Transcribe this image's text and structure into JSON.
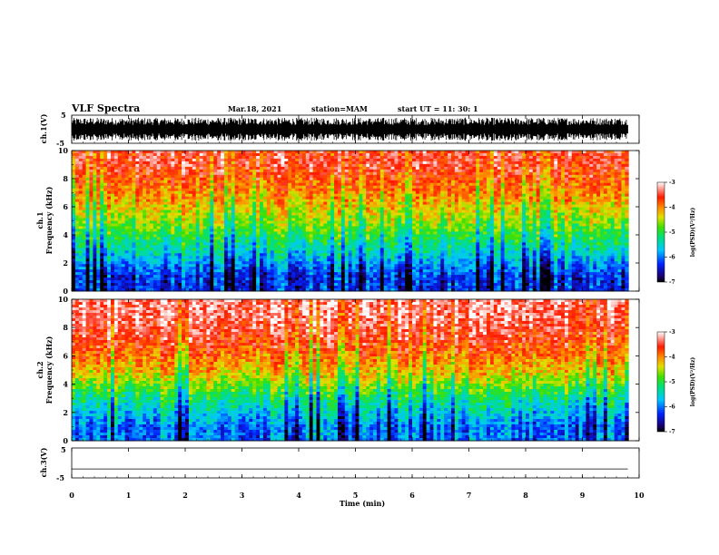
{
  "header": {
    "title": "VLF Spectra",
    "date": "Mar.18, 2021",
    "station": "station=MAM",
    "start_ut": "start  UT =   11: 30: 1"
  },
  "chart_data": [
    {
      "type": "line",
      "panel": "ch1-waveform",
      "ylabel": "ch.1(V)",
      "ylim": [
        -5,
        5
      ],
      "yticks": [
        "5",
        "-5"
      ],
      "description_of_trace": "dense impulsive (sferic) waveform spanning roughly -4 to +4 V over entire record"
    },
    {
      "type": "heatmap",
      "panel": "ch1-spectrogram",
      "ylabel": "ch.1\nFrequency (kHz)",
      "ylim": [
        0,
        10
      ],
      "yticks": [
        "0",
        "2",
        "4",
        "6",
        "8",
        "10"
      ],
      "colorbar": {
        "label": "log(PSD)(V²/Hz)",
        "range": [
          -7,
          -3
        ],
        "ticks": [
          "-3",
          "-4",
          "-5",
          "-6",
          "-7"
        ]
      },
      "band_levels": [
        {
          "freq_khz": [
            0,
            2
          ],
          "log_psd": -6.3
        },
        {
          "freq_khz": [
            2,
            4
          ],
          "log_psd": -5.4
        },
        {
          "freq_khz": [
            4,
            6
          ],
          "log_psd": -4.6
        },
        {
          "freq_khz": [
            6,
            8
          ],
          "log_psd": -4.0
        },
        {
          "freq_khz": [
            8,
            10
          ],
          "log_psd": -3.5
        }
      ]
    },
    {
      "type": "heatmap",
      "panel": "ch2-spectrogram",
      "ylabel": "ch.2\nFrequency (kHz)",
      "ylim": [
        0,
        10
      ],
      "yticks": [
        "0",
        "2",
        "4",
        "6",
        "8",
        "10"
      ],
      "colorbar": {
        "label": "log(PSD)(V²/Hz)",
        "range": [
          -7,
          -3
        ],
        "ticks": [
          "-3",
          "-4",
          "-5",
          "-6",
          "-7"
        ]
      },
      "band_levels": [
        {
          "freq_khz": [
            0,
            2
          ],
          "log_psd": -6.0
        },
        {
          "freq_khz": [
            2,
            4
          ],
          "log_psd": -5.2
        },
        {
          "freq_khz": [
            4,
            6
          ],
          "log_psd": -4.2
        },
        {
          "freq_khz": [
            6,
            8
          ],
          "log_psd": -3.6
        },
        {
          "freq_khz": [
            8,
            10
          ],
          "log_psd": -3.3
        }
      ]
    },
    {
      "type": "line",
      "panel": "ch3-waveform",
      "ylabel": "ch.3(V)",
      "ylim": [
        -5,
        5
      ],
      "yticks": [
        "5",
        "-5"
      ],
      "x": [
        0,
        9.8
      ],
      "y": [
        -2,
        -2
      ]
    }
  ],
  "xaxis": {
    "label": "Time (min)",
    "xlim": [
      0,
      10
    ],
    "ticks": [
      "0",
      "1",
      "2",
      "3",
      "4",
      "5",
      "6",
      "7",
      "8",
      "9",
      "10"
    ]
  }
}
